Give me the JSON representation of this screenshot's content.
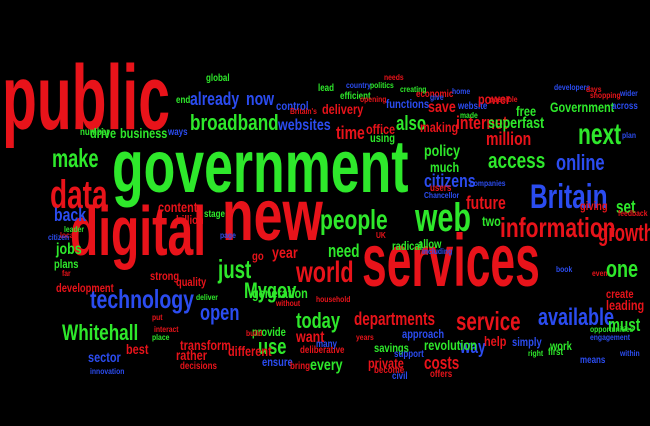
{
  "palette": {
    "background": "#000000",
    "red": "#e8131a",
    "green": "#2ee82b",
    "blue": "#2b4cf0"
  },
  "words": [
    {
      "text": "public",
      "color": "red"
    },
    {
      "text": "government",
      "color": "green"
    },
    {
      "text": "services",
      "color": "red"
    },
    {
      "text": "digital",
      "color": "red"
    },
    {
      "text": "new",
      "color": "red"
    },
    {
      "text": "data",
      "color": "red"
    },
    {
      "text": "web",
      "color": "green"
    },
    {
      "text": "Britain",
      "color": "blue"
    },
    {
      "text": "people",
      "color": "green"
    },
    {
      "text": "information",
      "color": "red"
    },
    {
      "text": "technology",
      "color": "blue"
    },
    {
      "text": "world",
      "color": "red"
    },
    {
      "text": "Whitehall",
      "color": "green"
    },
    {
      "text": "broadband",
      "color": "green"
    },
    {
      "text": "access",
      "color": "green"
    },
    {
      "text": "online",
      "color": "blue"
    },
    {
      "text": "make",
      "color": "green"
    },
    {
      "text": "just",
      "color": "green"
    },
    {
      "text": "next",
      "color": "green"
    },
    {
      "text": "service",
      "color": "red"
    },
    {
      "text": "available",
      "color": "blue"
    },
    {
      "text": "citizens",
      "color": "blue"
    },
    {
      "text": "future",
      "color": "red"
    },
    {
      "text": "internet",
      "color": "red"
    },
    {
      "text": "million",
      "color": "red"
    },
    {
      "text": "policy",
      "color": "green"
    },
    {
      "text": "time",
      "color": "red"
    },
    {
      "text": "also",
      "color": "green"
    },
    {
      "text": "already",
      "color": "blue"
    },
    {
      "text": "now",
      "color": "blue"
    },
    {
      "text": "websites",
      "color": "blue"
    },
    {
      "text": "superfast",
      "color": "green"
    },
    {
      "text": "open",
      "color": "blue"
    },
    {
      "text": "Mygov",
      "color": "green"
    },
    {
      "text": "today",
      "color": "green"
    },
    {
      "text": "departments",
      "color": "red"
    },
    {
      "text": "growth",
      "color": "red"
    },
    {
      "text": "one",
      "color": "green"
    },
    {
      "text": "must",
      "color": "green"
    },
    {
      "text": "leading",
      "color": "red"
    },
    {
      "text": "set",
      "color": "green"
    },
    {
      "text": "need",
      "color": "green"
    },
    {
      "text": "year",
      "color": "red"
    },
    {
      "text": "generation",
      "color": "green"
    },
    {
      "text": "use",
      "color": "green"
    },
    {
      "text": "want",
      "color": "red"
    },
    {
      "text": "every",
      "color": "green"
    },
    {
      "text": "costs",
      "color": "red"
    },
    {
      "text": "way",
      "color": "blue"
    },
    {
      "text": "help",
      "color": "red"
    },
    {
      "text": "back",
      "color": "blue"
    },
    {
      "text": "best",
      "color": "red"
    },
    {
      "text": "drive",
      "color": "green"
    },
    {
      "text": "business",
      "color": "green"
    },
    {
      "text": "making",
      "color": "red"
    },
    {
      "text": "save",
      "color": "red"
    },
    {
      "text": "much",
      "color": "green"
    },
    {
      "text": "control",
      "color": "blue"
    },
    {
      "text": "delivery",
      "color": "red"
    },
    {
      "text": "office",
      "color": "red"
    },
    {
      "text": "using",
      "color": "green"
    },
    {
      "text": "functions",
      "color": "blue"
    },
    {
      "text": "economic",
      "color": "red"
    },
    {
      "text": "website",
      "color": "blue"
    },
    {
      "text": "Government",
      "color": "green"
    },
    {
      "text": "free",
      "color": "green"
    },
    {
      "text": "content",
      "color": "red"
    },
    {
      "text": "billion",
      "color": "red"
    },
    {
      "text": "jobs",
      "color": "green"
    },
    {
      "text": "plans",
      "color": "green"
    },
    {
      "text": "development",
      "color": "red"
    },
    {
      "text": "quality",
      "color": "red"
    },
    {
      "text": "strong",
      "color": "red"
    },
    {
      "text": "transform",
      "color": "red"
    },
    {
      "text": "rather",
      "color": "red"
    },
    {
      "text": "different",
      "color": "red"
    },
    {
      "text": "sector",
      "color": "blue"
    },
    {
      "text": "revolution",
      "color": "green"
    },
    {
      "text": "approach",
      "color": "blue"
    },
    {
      "text": "savings",
      "color": "green"
    },
    {
      "text": "private",
      "color": "red"
    },
    {
      "text": "simply",
      "color": "blue"
    },
    {
      "text": "work",
      "color": "green"
    },
    {
      "text": "radical",
      "color": "green"
    },
    {
      "text": "allow",
      "color": "green"
    },
    {
      "text": "two",
      "color": "green"
    },
    {
      "text": "provide",
      "color": "green"
    },
    {
      "text": "ensure",
      "color": "blue"
    },
    {
      "text": "giving",
      "color": "red"
    },
    {
      "text": "power",
      "color": "red"
    },
    {
      "text": "stage",
      "color": "green"
    },
    {
      "text": "means",
      "color": "blue"
    },
    {
      "text": "create",
      "color": "red"
    },
    {
      "text": "global",
      "color": "green"
    },
    {
      "text": "lead",
      "color": "green"
    },
    {
      "text": "end",
      "color": "green"
    },
    {
      "text": "ways",
      "color": "blue"
    },
    {
      "text": "number",
      "color": "green"
    },
    {
      "text": "efficient",
      "color": "green"
    },
    {
      "text": "country",
      "color": "blue"
    },
    {
      "text": "politics",
      "color": "green"
    },
    {
      "text": "creating",
      "color": "green"
    },
    {
      "text": "home",
      "color": "blue"
    },
    {
      "text": "possible",
      "color": "red"
    },
    {
      "text": "developers",
      "color": "blue"
    },
    {
      "text": "shopping",
      "color": "red"
    },
    {
      "text": "across",
      "color": "blue"
    },
    {
      "text": "users",
      "color": "red"
    },
    {
      "text": "companies",
      "color": "blue"
    },
    {
      "text": "including",
      "color": "blue"
    },
    {
      "text": "deliberative",
      "color": "red"
    },
    {
      "text": "household",
      "color": "red"
    },
    {
      "text": "civil",
      "color": "blue"
    },
    {
      "text": "offers",
      "color": "red"
    },
    {
      "text": "support",
      "color": "blue"
    },
    {
      "text": "bring",
      "color": "red"
    },
    {
      "text": "become",
      "color": "red"
    },
    {
      "text": "decisions",
      "color": "red"
    },
    {
      "text": "innovation",
      "color": "blue"
    },
    {
      "text": "opportunities",
      "color": "green"
    },
    {
      "text": "engagement",
      "color": "blue"
    },
    {
      "text": "feedback",
      "color": "red"
    },
    {
      "text": "within",
      "color": "blue"
    },
    {
      "text": "first",
      "color": "green"
    },
    {
      "text": "right",
      "color": "green"
    },
    {
      "text": "Britain's",
      "color": "red"
    },
    {
      "text": "many",
      "color": "blue"
    },
    {
      "text": "years",
      "color": "red"
    },
    {
      "text": "even",
      "color": "red"
    },
    {
      "text": "wider",
      "color": "blue"
    },
    {
      "text": "plan",
      "color": "blue"
    },
    {
      "text": "book",
      "color": "blue"
    },
    {
      "text": "interact",
      "color": "red"
    },
    {
      "text": "leader",
      "color": "green"
    },
    {
      "text": "deliver",
      "color": "green"
    },
    {
      "text": "put",
      "color": "red"
    },
    {
      "text": "place",
      "color": "green"
    },
    {
      "text": "build",
      "color": "red"
    },
    {
      "text": "UK",
      "color": "red"
    },
    {
      "text": "go",
      "color": "red"
    },
    {
      "text": "give",
      "color": "blue"
    },
    {
      "text": "made",
      "color": "green"
    },
    {
      "text": "opening",
      "color": "red"
    },
    {
      "text": "needs",
      "color": "red"
    },
    {
      "text": "days",
      "color": "red"
    },
    {
      "text": "local",
      "color": "red"
    },
    {
      "text": "citizen",
      "color": "blue"
    },
    {
      "text": "without",
      "color": "red"
    },
    {
      "text": "far",
      "color": "red"
    },
    {
      "text": "page",
      "color": "blue"
    },
    {
      "text": "Chancellor",
      "color": "blue"
    }
  ]
}
